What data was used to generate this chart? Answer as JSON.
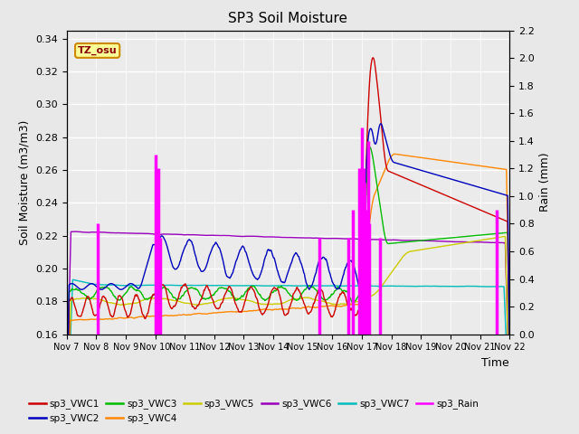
{
  "title": "SP3 Soil Moisture",
  "ylabel_left": "Soil Moisture (m3/m3)",
  "ylabel_right": "Rain (mm)",
  "xlabel": "Time",
  "ylim_left": [
    0.16,
    0.345
  ],
  "ylim_right": [
    0.0,
    2.2
  ],
  "bg_color": "#e8e8e8",
  "plot_bg_color": "#ebebeb",
  "tz_label": "TZ_osu",
  "series_colors": {
    "sp3_VWC1": "#cc0000",
    "sp3_VWC2": "#0000bb",
    "sp3_VWC3": "#00bb00",
    "sp3_VWC4": "#ff8800",
    "sp3_VWC5": "#cccc00",
    "sp3_VWC6": "#9900bb",
    "sp3_VWC7": "#00bbbb",
    "sp3_Rain": "#ff00ff"
  },
  "x_tick_labels": [
    "Nov 7",
    "Nov 8",
    "Nov 9",
    "Nov 10",
    "Nov 11",
    "Nov 12",
    "Nov 13",
    "Nov 14",
    "Nov 15",
    "Nov 16",
    "Nov 17",
    "Nov 18",
    "Nov 19",
    "Nov 20",
    "Nov 21",
    "Nov 22"
  ],
  "yticks_left": [
    0.16,
    0.18,
    0.2,
    0.22,
    0.24,
    0.26,
    0.28,
    0.3,
    0.32,
    0.34
  ],
  "yticks_right": [
    0.0,
    0.2,
    0.4,
    0.6,
    0.8,
    1.0,
    1.2,
    1.4,
    1.6,
    1.8,
    2.0,
    2.2
  ],
  "figsize": [
    6.4,
    4.8
  ],
  "dpi": 100
}
